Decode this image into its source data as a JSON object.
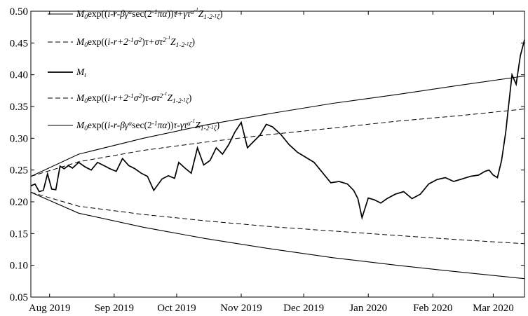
{
  "chart_data": {
    "type": "line",
    "title": "",
    "xlabel": "",
    "ylabel": "",
    "ylim": [
      0.05,
      0.5
    ],
    "yticks": [
      0.05,
      0.1,
      0.15,
      0.2,
      0.25,
      0.3,
      0.35,
      0.4,
      0.45,
      0.5
    ],
    "ytick_labels": [
      "0.05",
      "0.10",
      "0.15",
      "0.20",
      "0.25",
      "0.30",
      "0.35",
      "0.40",
      "0.45",
      "0.50"
    ],
    "xlim": [
      "2019-07-23",
      "2020-03-16"
    ],
    "xticks": [
      "2019-08-01",
      "2019-09-01",
      "2019-10-01",
      "2019-11-01",
      "2019-12-01",
      "2020-01-01",
      "2020-02-01",
      "2020-03-01"
    ],
    "xtick_labels": [
      "Aug 2019",
      "Sep 2019",
      "Oct 2019",
      "Nov 2019",
      "Dec 2019",
      "Jan 2020",
      "Feb 2020",
      "Mar 2020"
    ],
    "grid": false,
    "legend_position": "top-left",
    "legend": [
      {
        "style": "solid",
        "label_parts": [
          {
            "t": "M"
          },
          {
            "t": "0",
            "s": "dn"
          },
          {
            "t": "exp((",
            "s": "rm"
          },
          {
            "t": "i-r-βγ"
          },
          {
            "t": "α",
            "s": "up"
          },
          {
            "t": "sec(2",
            "s": "rm"
          },
          {
            "t": "-1",
            "s": "up"
          },
          {
            "t": "πα",
            "s": "mid"
          },
          {
            "t": "))",
            "s": "rm"
          },
          {
            "t": "τ+γτ"
          },
          {
            "t": "α",
            "s": "up"
          },
          {
            "t": "-1",
            "s": "up2"
          },
          {
            "t": "Z"
          },
          {
            "t": "1-2",
            "s": "dn"
          },
          {
            "t": "-1",
            "s": "dn2"
          },
          {
            "t": "ζ",
            "s": "dn"
          },
          {
            "t": ")",
            "s": "rm"
          }
        ]
      },
      {
        "style": "dashed",
        "label_parts": [
          {
            "t": "M"
          },
          {
            "t": "0",
            "s": "dn"
          },
          {
            "t": "exp((",
            "s": "rm"
          },
          {
            "t": "i-r+2"
          },
          {
            "t": "-1",
            "s": "up"
          },
          {
            "t": "σ"
          },
          {
            "t": "2",
            "s": "up"
          },
          {
            "t": ")",
            "s": "rm"
          },
          {
            "t": "τ+στ"
          },
          {
            "t": "2",
            "s": "up"
          },
          {
            "t": "-1",
            "s": "up2"
          },
          {
            "t": "Z"
          },
          {
            "t": "1-2",
            "s": "dn"
          },
          {
            "t": "-1",
            "s": "dn2"
          },
          {
            "t": "ζ",
            "s": "dn"
          },
          {
            "t": ")",
            "s": "rm"
          }
        ]
      },
      {
        "style": "bold",
        "label_parts": [
          {
            "t": "M"
          },
          {
            "t": "t",
            "s": "dn"
          }
        ]
      },
      {
        "style": "dashed",
        "label_parts": [
          {
            "t": "M"
          },
          {
            "t": "0",
            "s": "dn"
          },
          {
            "t": "exp((",
            "s": "rm"
          },
          {
            "t": "i-r+2"
          },
          {
            "t": "-1",
            "s": "up"
          },
          {
            "t": "σ"
          },
          {
            "t": "2",
            "s": "up"
          },
          {
            "t": ")",
            "s": "rm"
          },
          {
            "t": "τ-στ"
          },
          {
            "t": "2",
            "s": "up"
          },
          {
            "t": "-1",
            "s": "up2"
          },
          {
            "t": "Z"
          },
          {
            "t": "1-2",
            "s": "dn"
          },
          {
            "t": "-1",
            "s": "dn2"
          },
          {
            "t": "ζ",
            "s": "dn"
          },
          {
            "t": ")",
            "s": "rm"
          }
        ]
      },
      {
        "style": "solid",
        "label_parts": [
          {
            "t": "M"
          },
          {
            "t": "0",
            "s": "dn"
          },
          {
            "t": "exp((",
            "s": "rm"
          },
          {
            "t": "i-r-βγ"
          },
          {
            "t": "α",
            "s": "up"
          },
          {
            "t": "sec(2",
            "s": "rm"
          },
          {
            "t": "-1",
            "s": "up"
          },
          {
            "t": "πα",
            "s": "mid"
          },
          {
            "t": "))",
            "s": "rm"
          },
          {
            "t": "τ-γτ"
          },
          {
            "t": "α",
            "s": "up"
          },
          {
            "t": "-1",
            "s": "up2"
          },
          {
            "t": "Z"
          },
          {
            "t": "1-2",
            "s": "dn"
          },
          {
            "t": "-1",
            "s": "dn2"
          },
          {
            "t": "ζ",
            "s": "dn"
          },
          {
            "t": ")",
            "s": "rm"
          }
        ]
      }
    ],
    "series": [
      {
        "style": "solid",
        "x": [
          "2019-07-23",
          "2019-08-15",
          "2019-09-15",
          "2019-10-15",
          "2019-11-15",
          "2019-12-15",
          "2020-01-15",
          "2020-02-15",
          "2020-03-16"
        ],
        "y": [
          0.24,
          0.275,
          0.3,
          0.321,
          0.339,
          0.355,
          0.369,
          0.384,
          0.398
        ]
      },
      {
        "style": "dashed",
        "x": [
          "2019-07-23",
          "2019-08-15",
          "2019-09-15",
          "2019-10-15",
          "2019-11-15",
          "2019-12-15",
          "2020-01-15",
          "2020-02-15",
          "2020-03-16"
        ],
        "y": [
          0.24,
          0.263,
          0.281,
          0.294,
          0.306,
          0.316,
          0.327,
          0.336,
          0.346
        ]
      },
      {
        "style": "bold",
        "x": [
          "2019-07-23",
          "2019-07-25",
          "2019-07-27",
          "2019-07-29",
          "2019-07-31",
          "2019-08-02",
          "2019-08-04",
          "2019-08-06",
          "2019-08-08",
          "2019-08-10",
          "2019-08-12",
          "2019-08-15",
          "2019-08-18",
          "2019-08-21",
          "2019-08-24",
          "2019-08-27",
          "2019-08-30",
          "2019-09-02",
          "2019-09-05",
          "2019-09-08",
          "2019-09-11",
          "2019-09-14",
          "2019-09-17",
          "2019-09-20",
          "2019-09-24",
          "2019-09-27",
          "2019-09-30",
          "2019-10-02",
          "2019-10-05",
          "2019-10-08",
          "2019-10-11",
          "2019-10-14",
          "2019-10-17",
          "2019-10-20",
          "2019-10-23",
          "2019-10-26",
          "2019-10-29",
          "2019-11-01",
          "2019-11-04",
          "2019-11-07",
          "2019-11-10",
          "2019-11-13",
          "2019-11-16",
          "2019-11-20",
          "2019-11-24",
          "2019-11-28",
          "2019-12-02",
          "2019-12-06",
          "2019-12-10",
          "2019-12-14",
          "2019-12-18",
          "2019-12-22",
          "2019-12-25",
          "2019-12-27",
          "2019-12-29",
          "2020-01-01",
          "2020-01-04",
          "2020-01-07",
          "2020-01-10",
          "2020-01-14",
          "2020-01-18",
          "2020-01-22",
          "2020-01-26",
          "2020-01-30",
          "2020-02-03",
          "2020-02-07",
          "2020-02-11",
          "2020-02-15",
          "2020-02-19",
          "2020-02-23",
          "2020-02-26",
          "2020-02-28",
          "2020-03-01",
          "2020-03-03",
          "2020-03-05",
          "2020-03-07",
          "2020-03-08",
          "2020-03-10",
          "2020-03-12",
          "2020-03-14",
          "2020-03-16"
        ],
        "y": [
          0.225,
          0.228,
          0.216,
          0.218,
          0.244,
          0.22,
          0.219,
          0.256,
          0.252,
          0.257,
          0.253,
          0.262,
          0.255,
          0.25,
          0.262,
          0.257,
          0.252,
          0.248,
          0.268,
          0.257,
          0.252,
          0.245,
          0.24,
          0.218,
          0.236,
          0.241,
          0.237,
          0.262,
          0.253,
          0.245,
          0.285,
          0.258,
          0.265,
          0.285,
          0.275,
          0.29,
          0.31,
          0.325,
          0.285,
          0.295,
          0.305,
          0.322,
          0.318,
          0.306,
          0.29,
          0.278,
          0.27,
          0.262,
          0.246,
          0.23,
          0.232,
          0.228,
          0.218,
          0.205,
          0.175,
          0.206,
          0.203,
          0.198,
          0.205,
          0.212,
          0.216,
          0.205,
          0.212,
          0.228,
          0.235,
          0.238,
          0.232,
          0.236,
          0.24,
          0.242,
          0.248,
          0.25,
          0.242,
          0.238,
          0.265,
          0.31,
          0.34,
          0.4,
          0.385,
          0.43,
          0.455
        ]
      },
      {
        "style": "dashed",
        "x": [
          "2019-07-23",
          "2019-08-15",
          "2019-09-15",
          "2019-10-15",
          "2019-11-15",
          "2019-12-15",
          "2020-01-15",
          "2020-02-15",
          "2020-03-16"
        ],
        "y": [
          0.215,
          0.193,
          0.18,
          0.17,
          0.161,
          0.154,
          0.147,
          0.14,
          0.134
        ]
      },
      {
        "style": "solid",
        "x": [
          "2019-07-23",
          "2019-08-15",
          "2019-09-15",
          "2019-10-15",
          "2019-11-15",
          "2019-12-15",
          "2020-01-15",
          "2020-02-15",
          "2020-03-16"
        ],
        "y": [
          0.215,
          0.182,
          0.16,
          0.142,
          0.126,
          0.112,
          0.1,
          0.089,
          0.079
        ]
      }
    ]
  }
}
